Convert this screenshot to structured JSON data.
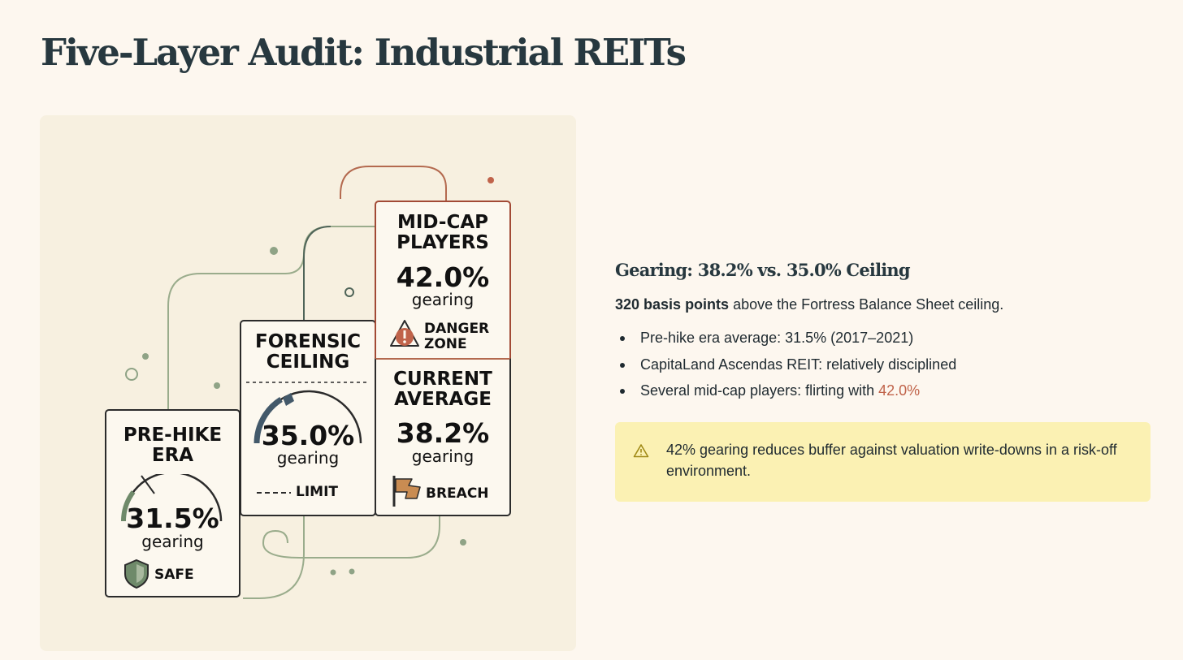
{
  "page": {
    "title": "Five-Layer Audit: Industrial REITs"
  },
  "illustration": {
    "cards": {
      "prehike": {
        "title_l1": "PRE-HIKE",
        "title_l2": "ERA",
        "value": "31.5%",
        "unit": "gearing",
        "status": "SAFE"
      },
      "ceiling": {
        "title_l1": "FORENSIC",
        "title_l2": "CEILING",
        "value": "35.0%",
        "unit": "gearing",
        "status": "LIMIT"
      },
      "midcap": {
        "title_l1": "MID-CAP",
        "title_l2": "PLAYERS",
        "value": "42.0%",
        "unit": "gearing",
        "status_l1": "DANGER",
        "status_l2": "ZONE"
      },
      "current": {
        "title_l1": "CURRENT",
        "title_l2": "AVERAGE",
        "value": "38.2%",
        "unit": "gearing",
        "status": "BREACH"
      }
    }
  },
  "panel": {
    "heading": "Gearing: 38.2% vs. 35.0% Ceiling",
    "lead_bold": "320 basis points",
    "lead_rest": " above the Fortress Balance Sheet ceiling.",
    "bullets": [
      "Pre-hike era average: 31.5% (2017–2021)",
      "CapitaLand Ascendas REIT: relatively disciplined"
    ],
    "bullet3_text": "Several mid-cap players: flirting with ",
    "bullet3_accent": "42.0%",
    "warning_text": "42% gearing reduces buffer against valuation write-downs in a risk-off environment."
  },
  "colors": {
    "accent": "#c0634a",
    "warning_bg": "#fbf1b3",
    "safe_green": "#6f8a6a",
    "card_border": "#2b2b2b"
  }
}
